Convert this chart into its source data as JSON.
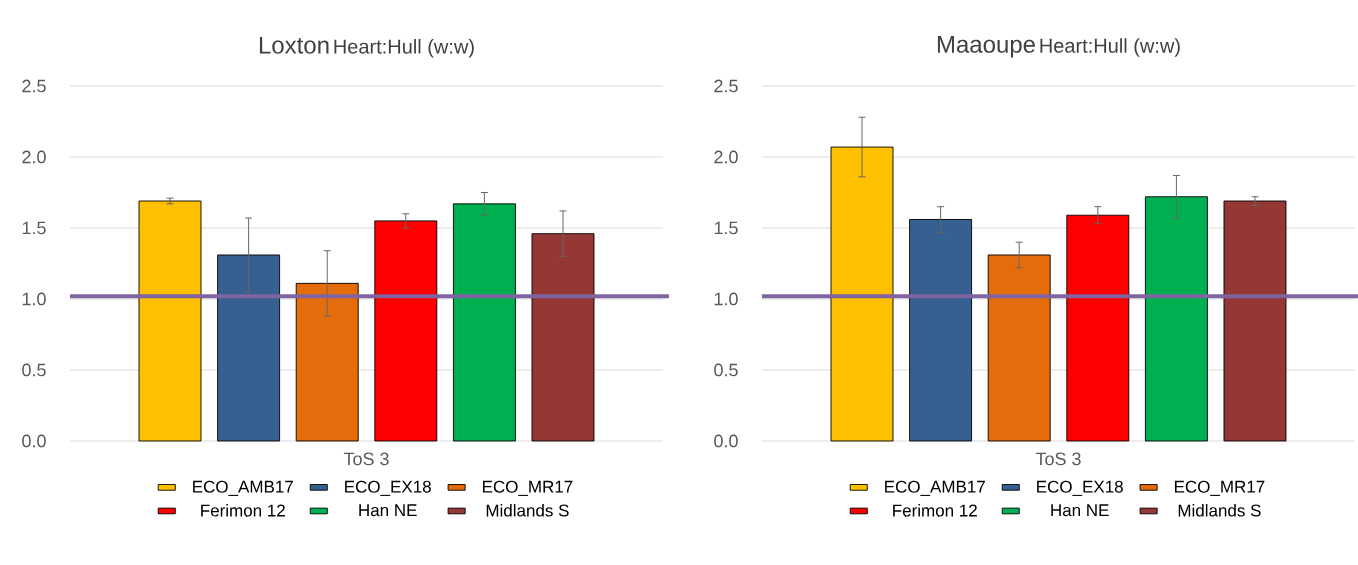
{
  "chart_data": [
    {
      "type": "bar",
      "title": "Loxton",
      "subtitle": "Heart:Hull (w:w)",
      "categories": [
        "ToS 3"
      ],
      "series": [
        {
          "name": "ECO_AMB17",
          "color": "#ffc000",
          "values": [
            1.69
          ],
          "errors": [
            0.02
          ]
        },
        {
          "name": "ECO_EX18",
          "color": "#376092",
          "values": [
            1.31
          ],
          "errors": [
            0.26
          ]
        },
        {
          "name": "ECO_MR17",
          "color": "#e46c0a",
          "values": [
            1.11
          ],
          "errors": [
            0.23
          ]
        },
        {
          "name": "Ferimon 12",
          "color": "#ff0000",
          "values": [
            1.55
          ],
          "errors": [
            0.05
          ]
        },
        {
          "name": "Han NE",
          "color": "#00b050",
          "values": [
            1.67
          ],
          "errors": [
            0.08
          ]
        },
        {
          "name": "Midlands S",
          "color": "#953735",
          "values": [
            1.46
          ],
          "errors": [
            0.16
          ]
        }
      ],
      "ylim": [
        0,
        2.5
      ],
      "yticks": [
        {
          "value": 0,
          "label": "0.0"
        },
        {
          "value": 0.5,
          "label": "0.5"
        },
        {
          "value": 1,
          "label": "1.0"
        },
        {
          "value": 1.5,
          "label": "1.5"
        },
        {
          "value": 2,
          "label": "2.0"
        },
        {
          "value": 2.5,
          "label": "2.5"
        }
      ],
      "ref_lines": [
        {
          "axis": "y",
          "value": 1.02,
          "color": "#8064a2"
        }
      ],
      "grid": "y",
      "legend": "bottom"
    },
    {
      "type": "bar",
      "title": "Maaoupe",
      "subtitle": "Heart:Hull (w:w)",
      "categories": [
        "ToS 3"
      ],
      "series": [
        {
          "name": "ECO_AMB17",
          "color": "#ffc000",
          "values": [
            2.07
          ],
          "errors": [
            0.21
          ]
        },
        {
          "name": "ECO_EX18",
          "color": "#376092",
          "values": [
            1.56
          ],
          "errors": [
            0.09
          ]
        },
        {
          "name": "ECO_MR17",
          "color": "#e46c0a",
          "values": [
            1.31
          ],
          "errors": [
            0.09
          ]
        },
        {
          "name": "Ferimon 12",
          "color": "#ff0000",
          "values": [
            1.59
          ],
          "errors": [
            0.06
          ]
        },
        {
          "name": "Han NE",
          "color": "#00b050",
          "values": [
            1.72
          ],
          "errors": [
            0.15
          ]
        },
        {
          "name": "Midlands S",
          "color": "#953735",
          "values": [
            1.69
          ],
          "errors": [
            0.03
          ]
        }
      ],
      "ylim": [
        0,
        2.5
      ],
      "yticks": [
        {
          "value": 0,
          "label": "0.0"
        },
        {
          "value": 0.5,
          "label": "0.5"
        },
        {
          "value": 1,
          "label": "1.0"
        },
        {
          "value": 1.5,
          "label": "1.5"
        },
        {
          "value": 2,
          "label": "2.0"
        },
        {
          "value": 2.5,
          "label": "2.5"
        }
      ],
      "ref_lines": [
        {
          "axis": "y",
          "value": 1.02,
          "color": "#8064a2"
        }
      ],
      "grid": "y",
      "legend": "bottom"
    }
  ]
}
